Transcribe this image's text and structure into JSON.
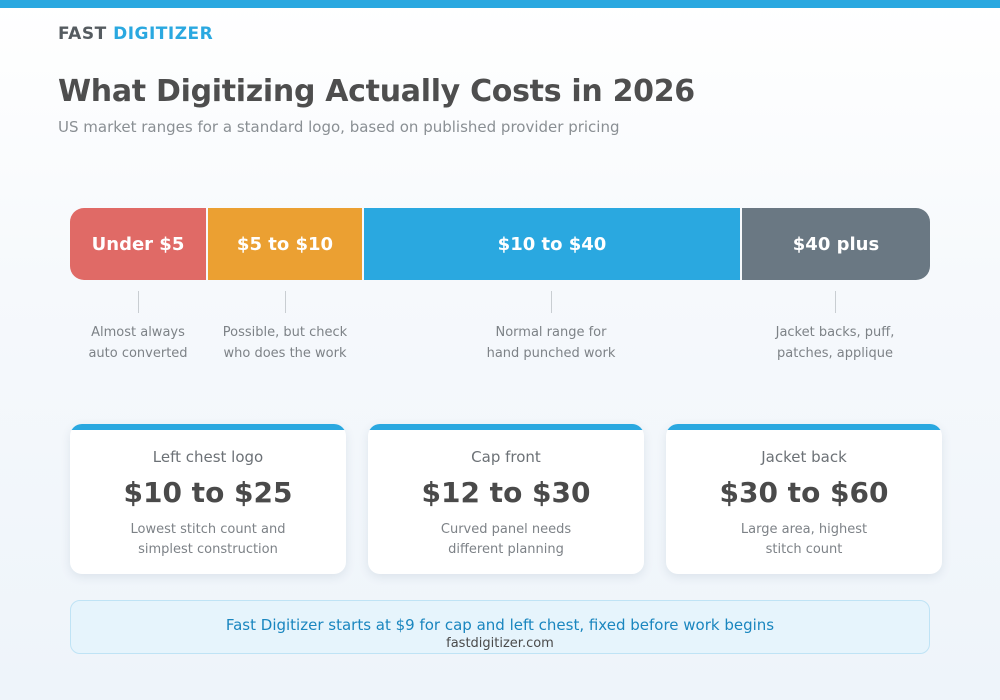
{
  "brand": {
    "part1": "FAST",
    "part2": "DIGITIZER"
  },
  "header": {
    "title": "What Digitizing Actually Costs in 2026",
    "subtitle": "US market ranges for a standard logo, based on published provider pricing"
  },
  "scale": {
    "segments": [
      {
        "label": "Under $5",
        "color": "#e06a66",
        "note_line1": "Almost always",
        "note_line2": "auto converted"
      },
      {
        "label": "$5 to $10",
        "color": "#eba032",
        "note_line1": "Possible, but check",
        "note_line2": "who does the work"
      },
      {
        "label": "$10 to $40",
        "color": "#2aa8e0",
        "note_line1": "Normal range for",
        "note_line2": "hand punched work"
      },
      {
        "label": "$40 plus",
        "color": "#6a7883",
        "note_line1": "Jacket backs, puff,",
        "note_line2": "patches, applique"
      }
    ]
  },
  "cards": [
    {
      "label": "Left chest logo",
      "price": "$10 to $25",
      "desc_line1": "Lowest stitch count and",
      "desc_line2": "simplest construction"
    },
    {
      "label": "Cap front",
      "price": "$12 to $30",
      "desc_line1": "Curved panel needs",
      "desc_line2": "different planning"
    },
    {
      "label": "Jacket back",
      "price": "$30 to $60",
      "desc_line1": "Large area, highest",
      "desc_line2": "stitch count"
    }
  ],
  "cta": {
    "text": "Fast Digitizer starts at $9 for cap and left chest, fixed before work begins",
    "url": "fastdigitizer.com"
  },
  "colors": {
    "accent": "#2aa8e0",
    "text_dark": "#4a4a4a",
    "text_muted": "#7d8287"
  }
}
